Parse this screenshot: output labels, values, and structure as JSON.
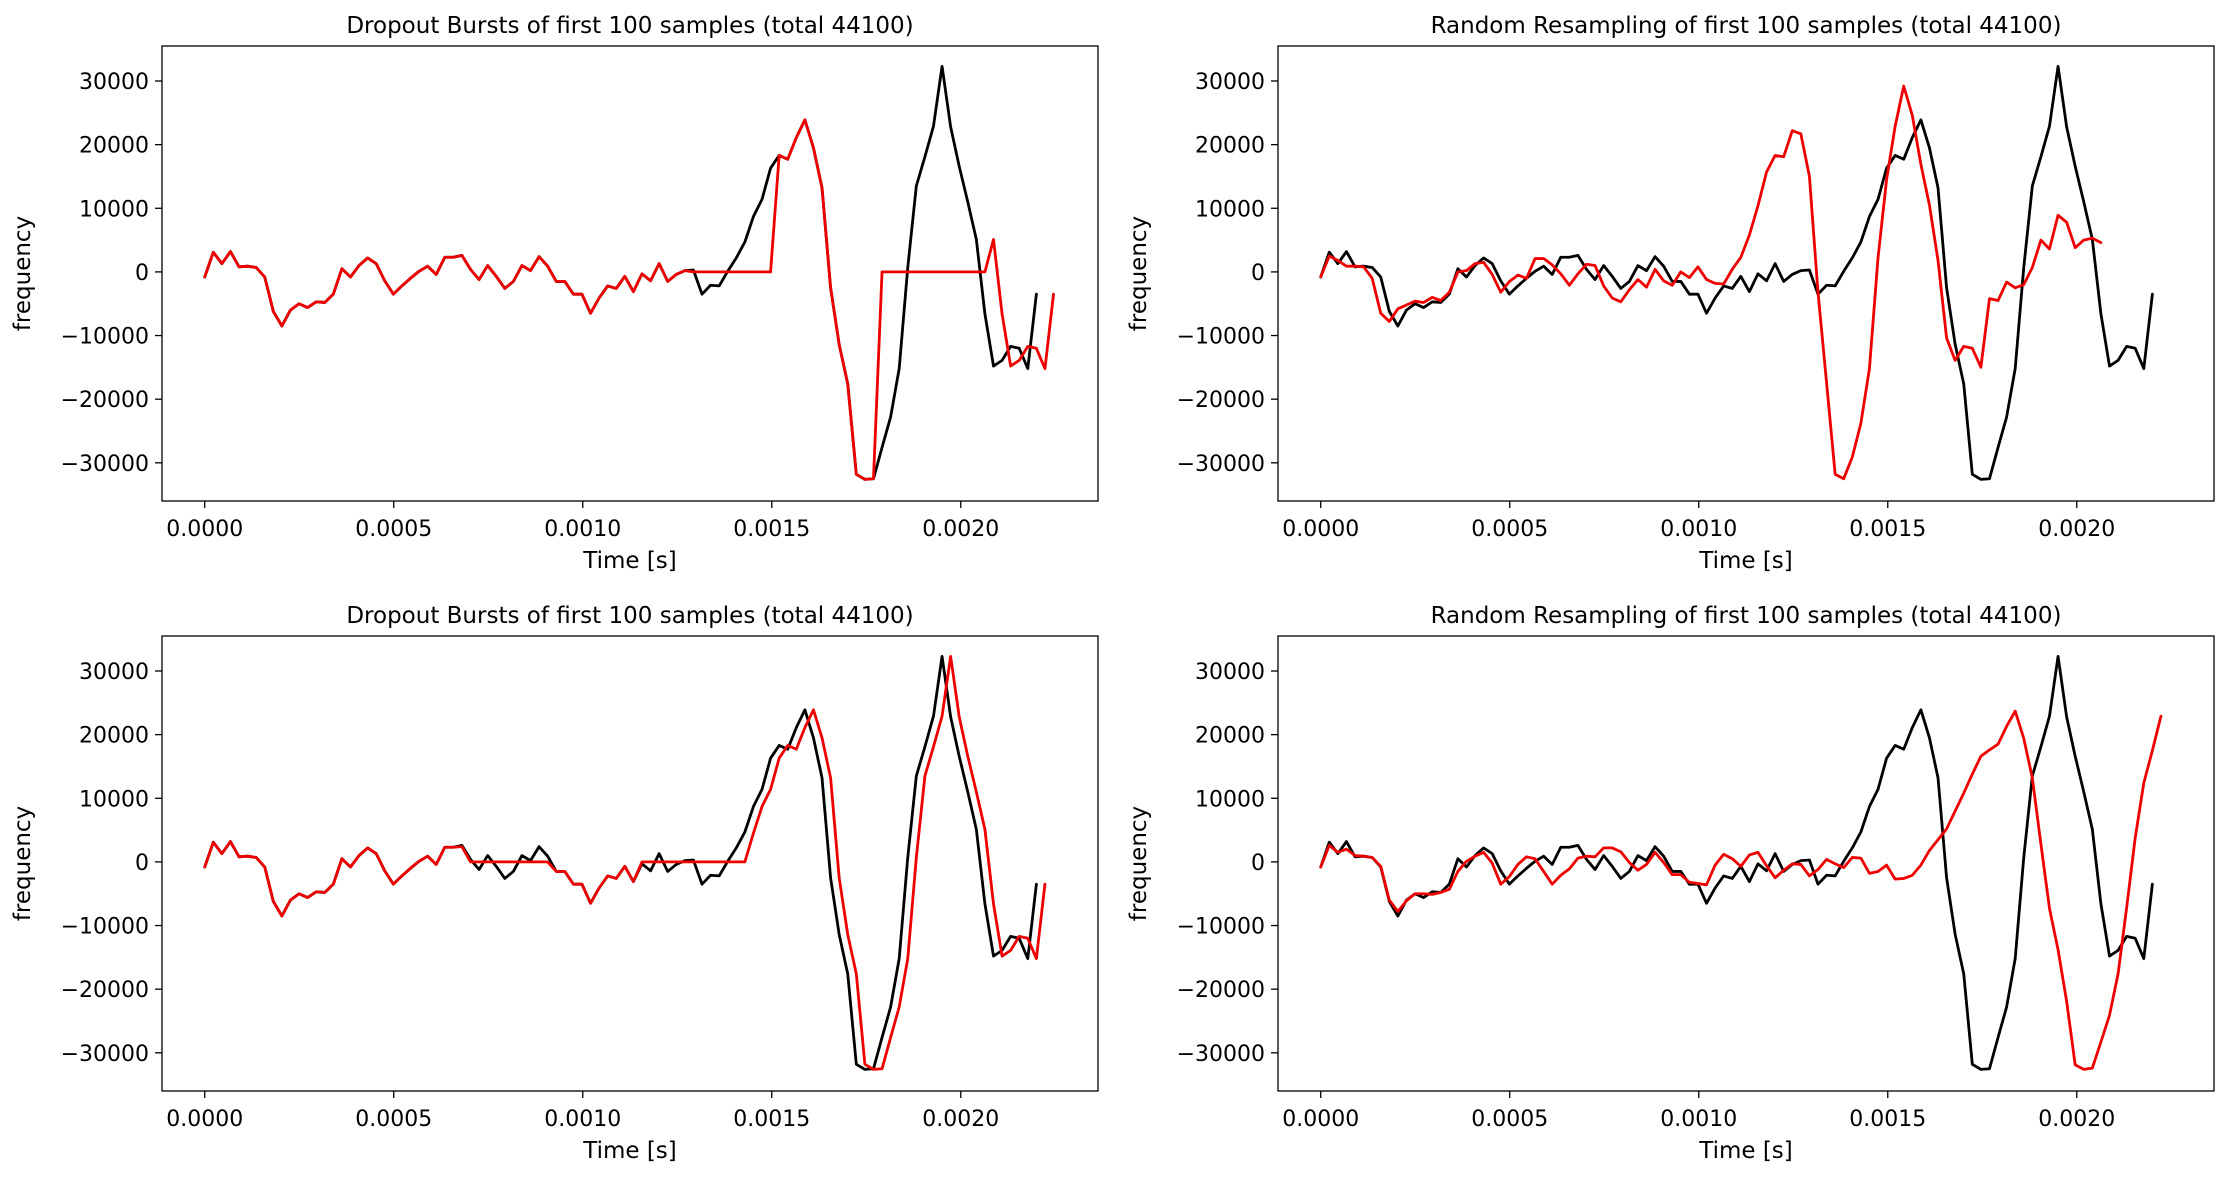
{
  "chart_data": [
    {
      "type": "line",
      "title": "Dropout Bursts of first 100 samples  (total 44100)",
      "xlabel": "Time [s]",
      "ylabel": "frequency",
      "xlim": [
        -0.000113,
        0.002363
      ],
      "ylim": [
        -36000,
        35500
      ],
      "xticks": [
        0.0,
        0.0005,
        0.001,
        0.0015,
        0.002
      ],
      "xtick_labels": [
        "0.0000",
        "0.0005",
        "0.0010",
        "0.0015",
        "0.0020"
      ],
      "yticks": [
        -30000,
        -20000,
        -10000,
        0,
        10000,
        20000,
        30000
      ],
      "ytick_labels": [
        "−30000",
        "−20000",
        "−10000",
        "0",
        "10000",
        "20000",
        "30000"
      ],
      "grid": false,
      "x_step": 2.268e-05,
      "series": [
        {
          "color": "#000000",
          "values": [
            -800,
            3100,
            1300,
            3200,
            800,
            900,
            700,
            -800,
            -6200,
            -8500,
            -6000,
            -5000,
            -5600,
            -4700,
            -4800,
            -3500,
            500,
            -800,
            1000,
            2200,
            1300,
            -1400,
            -3500,
            -2200,
            -1000,
            100,
            900,
            -400,
            2300,
            2300,
            2600,
            400,
            -1200,
            1000,
            -700,
            -2600,
            -1500,
            1000,
            200,
            2400,
            900,
            -1500,
            -1500,
            -3500,
            -3500,
            -6500,
            -4100,
            -2200,
            -2600,
            -700,
            -3100,
            -300,
            -1400,
            1300,
            -1500,
            -400,
            200,
            300,
            -3500,
            -2100,
            -2200,
            100,
            2200,
            4700,
            8700,
            11400,
            16300,
            18300,
            17700,
            21100,
            23900,
            19500,
            13200,
            -2500,
            -11400,
            -17600,
            -31800,
            -32600,
            -32500,
            -27600,
            -22800,
            -15200,
            700,
            13500,
            18100,
            22900,
            32300,
            22800,
            16600,
            11000,
            5100,
            -6600,
            -14800,
            -13900,
            -11700,
            -12000,
            -15200,
            -3500
          ]
        },
        {
          "color": "#ee0000",
          "values": [
            -800,
            3100,
            1300,
            3200,
            800,
            900,
            700,
            -800,
            -6200,
            -8500,
            -6000,
            -5000,
            -5600,
            -4700,
            -4800,
            -3500,
            500,
            -800,
            1000,
            2200,
            1300,
            -1400,
            -3500,
            -2200,
            -1000,
            100,
            900,
            -400,
            2300,
            2300,
            2600,
            400,
            -1200,
            1000,
            -700,
            -2600,
            -1500,
            1000,
            200,
            2400,
            900,
            -1500,
            -1500,
            -3500,
            -3500,
            -6500,
            -4100,
            -2200,
            -2600,
            -700,
            -3100,
            -300,
            -1400,
            1300,
            -1500,
            -400,
            200,
            0,
            0,
            0,
            0,
            0,
            0,
            0,
            0,
            0,
            0,
            18300,
            17700,
            21100,
            23900,
            19500,
            13200,
            -2500,
            -11400,
            -17600,
            -31800,
            -32600,
            -32500,
            0,
            0,
            0,
            0,
            0,
            0,
            0,
            0,
            0,
            0,
            0,
            0,
            0,
            5100,
            -6600,
            -14800,
            -13900,
            -11700,
            -12000,
            -15200,
            -3500
          ]
        }
      ]
    },
    {
      "type": "line",
      "title": "Random Resampling of first 100 samples  (total 44100)",
      "xlabel": "Time [s]",
      "ylabel": "frequency",
      "xlim": [
        -0.000113,
        0.002363
      ],
      "ylim": [
        -36000,
        35500
      ],
      "xticks": [
        0.0,
        0.0005,
        0.001,
        0.0015,
        0.002
      ],
      "xtick_labels": [
        "0.0000",
        "0.0005",
        "0.0010",
        "0.0015",
        "0.0020"
      ],
      "yticks": [
        -30000,
        -20000,
        -10000,
        0,
        10000,
        20000,
        30000
      ],
      "ytick_labels": [
        "−30000",
        "−20000",
        "−10000",
        "0",
        "10000",
        "20000",
        "30000"
      ],
      "grid": false,
      "x_step": 2.268e-05,
      "series": [
        {
          "color": "#000000",
          "values": [
            -800,
            3100,
            1300,
            3200,
            800,
            900,
            700,
            -800,
            -6200,
            -8500,
            -6000,
            -5000,
            -5600,
            -4700,
            -4800,
            -3500,
            500,
            -800,
            1000,
            2200,
            1300,
            -1400,
            -3500,
            -2200,
            -1000,
            100,
            900,
            -400,
            2300,
            2300,
            2600,
            400,
            -1200,
            1000,
            -700,
            -2600,
            -1500,
            1000,
            200,
            2400,
            900,
            -1500,
            -1500,
            -3500,
            -3500,
            -6500,
            -4100,
            -2200,
            -2600,
            -700,
            -3100,
            -300,
            -1400,
            1300,
            -1500,
            -400,
            200,
            300,
            -3500,
            -2100,
            -2200,
            100,
            2200,
            4700,
            8700,
            11400,
            16300,
            18300,
            17700,
            21100,
            23900,
            19500,
            13200,
            -2500,
            -11400,
            -17600,
            -31800,
            -32600,
            -32500,
            -27600,
            -22800,
            -15200,
            700,
            13500,
            18100,
            22900,
            32300,
            22800,
            16600,
            11000,
            5100,
            -6600,
            -14800,
            -13900,
            -11700,
            -12000,
            -15200,
            -3500
          ]
        },
        {
          "color": "#ee0000",
          "values": [
            -800,
            2500,
            1800,
            900,
            900,
            800,
            -1000,
            -6500,
            -7800,
            -5800,
            -5200,
            -4600,
            -4800,
            -4000,
            -4500,
            -3200,
            0,
            200,
            1300,
            1500,
            -400,
            -3200,
            -1500,
            -500,
            -1000,
            2100,
            2100,
            1100,
            -300,
            -2100,
            -300,
            1200,
            1000,
            -2200,
            -4100,
            -4700,
            -2800,
            -1200,
            -2400,
            400,
            -1400,
            -2100,
            0,
            -900,
            800,
            -1200,
            -1800,
            -1900,
            400,
            2300,
            5800,
            10400,
            15700,
            18300,
            18100,
            22200,
            21700,
            15000,
            -3200,
            -17400,
            -31800,
            -32500,
            -29100,
            -23800,
            -15200,
            2200,
            14500,
            22900,
            29200,
            24600,
            16900,
            10500,
            1800,
            -10400,
            -13900,
            -11700,
            -12000,
            -15000,
            -4200,
            -4500,
            -1600,
            -2500,
            -2000,
            700,
            5000,
            3600,
            8900,
            7800,
            3800,
            5000,
            5300,
            4600
          ]
        }
      ]
    },
    {
      "type": "line",
      "title": "Dropout Bursts of first 100 samples  (total 44100)",
      "xlabel": "Time [s]",
      "ylabel": "frequency",
      "xlim": [
        -0.000113,
        0.002363
      ],
      "ylim": [
        -36000,
        35500
      ],
      "xticks": [
        0.0,
        0.0005,
        0.001,
        0.0015,
        0.002
      ],
      "xtick_labels": [
        "0.0000",
        "0.0005",
        "0.0010",
        "0.0015",
        "0.0020"
      ],
      "yticks": [
        -30000,
        -20000,
        -10000,
        0,
        10000,
        20000,
        30000
      ],
      "ytick_labels": [
        "−30000",
        "−20000",
        "−10000",
        "0",
        "10000",
        "20000",
        "30000"
      ],
      "grid": false,
      "x_step": 2.268e-05,
      "series": [
        {
          "color": "#000000",
          "values": [
            -800,
            3100,
            1300,
            3200,
            800,
            900,
            700,
            -800,
            -6200,
            -8500,
            -6000,
            -5000,
            -5600,
            -4700,
            -4800,
            -3500,
            500,
            -800,
            1000,
            2200,
            1300,
            -1400,
            -3500,
            -2200,
            -1000,
            100,
            900,
            -400,
            2300,
            2300,
            2600,
            400,
            -1200,
            1000,
            -700,
            -2600,
            -1500,
            1000,
            200,
            2400,
            900,
            -1500,
            -1500,
            -3500,
            -3500,
            -6500,
            -4100,
            -2200,
            -2600,
            -700,
            -3100,
            -300,
            -1400,
            1300,
            -1500,
            -400,
            200,
            300,
            -3500,
            -2100,
            -2200,
            100,
            2200,
            4700,
            8700,
            11400,
            16300,
            18300,
            17700,
            21100,
            23900,
            19500,
            13200,
            -2500,
            -11400,
            -17600,
            -31800,
            -32600,
            -32500,
            -27600,
            -22800,
            -15200,
            700,
            13500,
            18100,
            22900,
            32300,
            22800,
            16600,
            11000,
            5100,
            -6600,
            -14800,
            -13900,
            -11700,
            -12000,
            -15200,
            -3500
          ]
        },
        {
          "color": "#ee0000",
          "values": [
            -800,
            3100,
            1300,
            3200,
            800,
            900,
            700,
            -800,
            -6200,
            -8500,
            -6000,
            -5000,
            -5600,
            -4700,
            -4800,
            -3500,
            500,
            -800,
            1000,
            2200,
            1300,
            -1400,
            -3500,
            -2200,
            -1000,
            100,
            900,
            -400,
            2300,
            2300,
            2400,
            0,
            0,
            0,
            0,
            0,
            0,
            0,
            0,
            0,
            0,
            -1500,
            -1500,
            -3500,
            -3500,
            -6500,
            -4100,
            -2200,
            -2600,
            -700,
            -3100,
            0,
            0,
            0,
            0,
            0,
            0,
            0,
            0,
            0,
            0,
            0,
            0,
            0,
            4500,
            8700,
            11400,
            16300,
            18300,
            17700,
            21100,
            23900,
            19500,
            13200,
            -2500,
            -11400,
            -17600,
            -31800,
            -32600,
            -32500,
            -27600,
            -22800,
            -15200,
            700,
            13500,
            18100,
            22900,
            32300,
            22800,
            16600,
            11000,
            5100,
            -6600,
            -14800,
            -13900,
            -11700,
            -12000,
            -15200,
            -3500
          ]
        }
      ]
    },
    {
      "type": "line",
      "title": "Random Resampling of first 100 samples  (total 44100)",
      "xlabel": "Time [s]",
      "ylabel": "frequency",
      "xlim": [
        -0.000113,
        0.002363
      ],
      "ylim": [
        -36000,
        35500
      ],
      "xticks": [
        0.0,
        0.0005,
        0.001,
        0.0015,
        0.002
      ],
      "xtick_labels": [
        "0.0000",
        "0.0005",
        "0.0010",
        "0.0015",
        "0.0020"
      ],
      "yticks": [
        -30000,
        -20000,
        -10000,
        0,
        10000,
        20000,
        30000
      ],
      "ytick_labels": [
        "−30000",
        "−20000",
        "−10000",
        "0",
        "10000",
        "20000",
        "30000"
      ],
      "grid": false,
      "x_step": 2.268e-05,
      "series": [
        {
          "color": "#000000",
          "values": [
            -800,
            3100,
            1300,
            3200,
            800,
            900,
            700,
            -800,
            -6200,
            -8500,
            -6000,
            -5000,
            -5600,
            -4700,
            -4800,
            -3500,
            500,
            -800,
            1000,
            2200,
            1300,
            -1400,
            -3500,
            -2200,
            -1000,
            100,
            900,
            -400,
            2300,
            2300,
            2600,
            400,
            -1200,
            1000,
            -700,
            -2600,
            -1500,
            1000,
            200,
            2400,
            900,
            -1500,
            -1500,
            -3500,
            -3500,
            -6500,
            -4100,
            -2200,
            -2600,
            -700,
            -3100,
            -300,
            -1400,
            1300,
            -1500,
            -400,
            200,
            300,
            -3500,
            -2100,
            -2200,
            100,
            2200,
            4700,
            8700,
            11400,
            16300,
            18300,
            17700,
            21100,
            23900,
            19500,
            13200,
            -2500,
            -11400,
            -17600,
            -31800,
            -32600,
            -32500,
            -27600,
            -22800,
            -15200,
            700,
            13500,
            18100,
            22900,
            32300,
            22800,
            16600,
            11000,
            5100,
            -6600,
            -14800,
            -13900,
            -11700,
            -12000,
            -15200,
            -3500
          ]
        },
        {
          "color": "#ee0000",
          "values": [
            -800,
            2600,
            1500,
            2000,
            1000,
            900,
            700,
            -700,
            -6000,
            -7800,
            -6100,
            -5000,
            -5000,
            -5100,
            -4800,
            -4300,
            -1500,
            100,
            900,
            1500,
            -200,
            -3500,
            -2300,
            -400,
            800,
            500,
            -1500,
            -3500,
            -2100,
            -1100,
            600,
            900,
            800,
            2200,
            2200,
            1600,
            -100,
            -1300,
            -400,
            1500,
            -100,
            -2000,
            -2000,
            -3200,
            -3400,
            -3600,
            -500,
            1200,
            500,
            -700,
            1100,
            1500,
            -600,
            -2500,
            -1300,
            -300,
            -400,
            -2200,
            -1200,
            400,
            -300,
            -900,
            700,
            600,
            -1800,
            -1500,
            -500,
            -2700,
            -2600,
            -2100,
            -500,
            1800,
            3500,
            5200,
            8000,
            10800,
            13800,
            16600,
            17600,
            18500,
            21300,
            23700,
            19400,
            13200,
            2800,
            -7300,
            -13800,
            -21900,
            -31900,
            -32600,
            -32400,
            -28300,
            -24100,
            -17600,
            -7200,
            3800,
            12400,
            17500,
            22900
          ]
        }
      ]
    }
  ]
}
